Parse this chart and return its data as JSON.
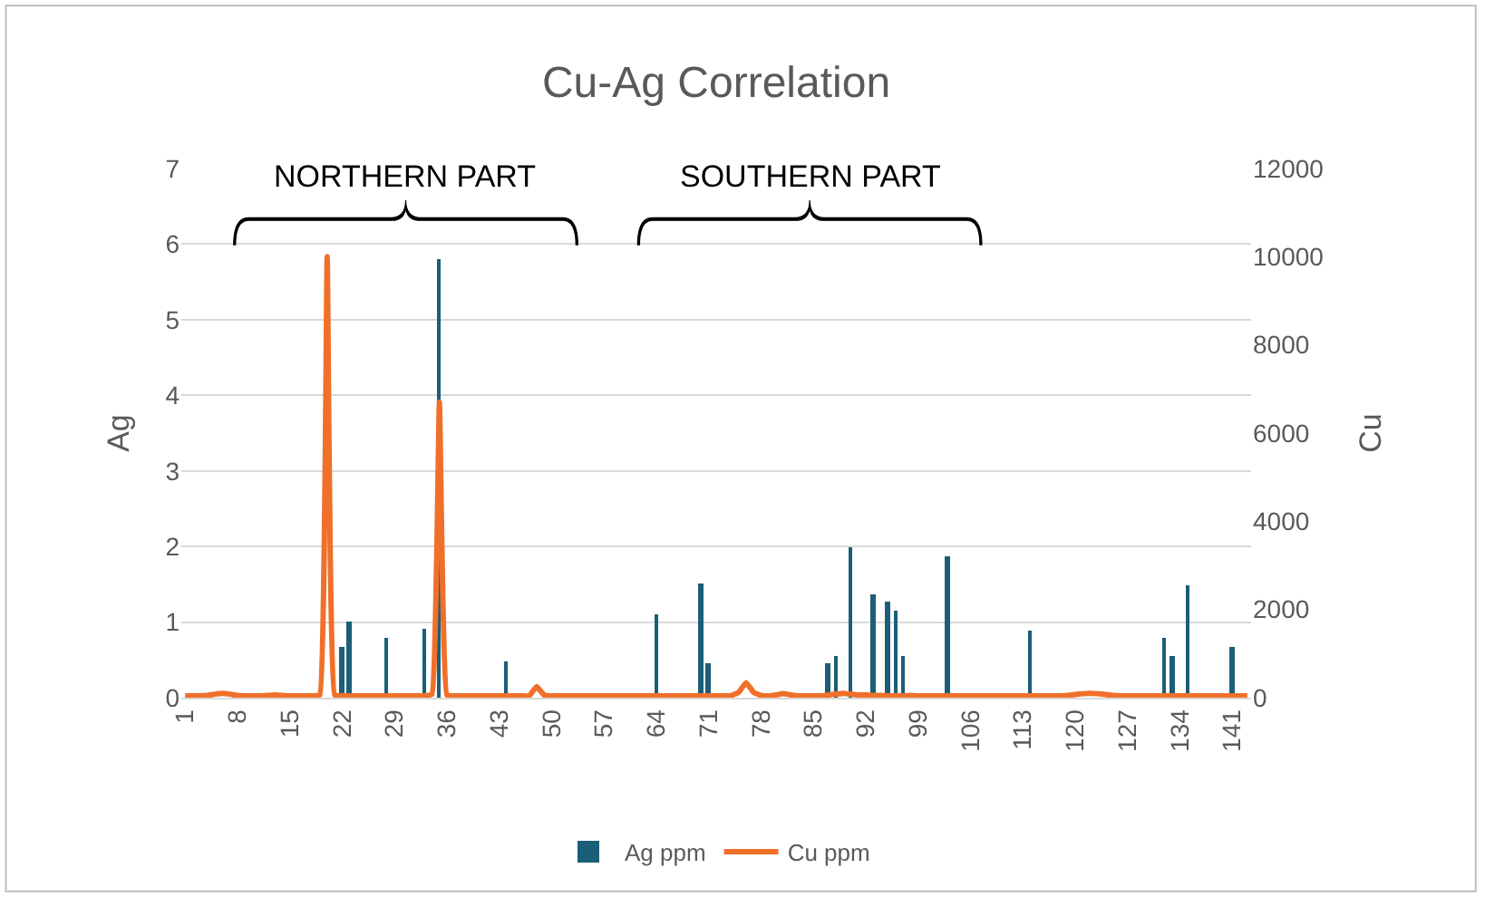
{
  "chart_data": {
    "type": "bar",
    "title": "Cu-Ag Correlation",
    "ylabel": "Ag",
    "y2label": "Cu",
    "categories": [
      "1",
      null,
      null,
      null,
      null,
      null,
      null,
      "8",
      null,
      null,
      null,
      null,
      null,
      null,
      "15",
      null,
      null,
      null,
      null,
      null,
      null,
      "22",
      null,
      null,
      null,
      null,
      null,
      null,
      "29",
      null,
      null,
      null,
      null,
      null,
      null,
      "36",
      null,
      null,
      null,
      null,
      null,
      null,
      "43",
      null,
      null,
      null,
      null,
      null,
      null,
      "50",
      null,
      null,
      null,
      null,
      null,
      null,
      "57",
      null,
      null,
      null,
      null,
      null,
      null,
      "64",
      null,
      null,
      null,
      null,
      null,
      null,
      "71",
      null,
      null,
      null,
      null,
      null,
      null,
      "78",
      null,
      null,
      null,
      null,
      null,
      null,
      "85",
      null,
      null,
      null,
      null,
      null,
      null,
      "92",
      null,
      null,
      null,
      null,
      null,
      null,
      "99",
      null,
      null,
      null,
      null,
      null,
      null,
      "106",
      null,
      null,
      null,
      null,
      null,
      null,
      "113",
      null,
      null,
      null,
      null,
      null,
      null,
      "120",
      null,
      null,
      null,
      null,
      null,
      null,
      "127",
      null,
      null,
      null,
      null,
      null,
      null,
      "134",
      null,
      null,
      null,
      null,
      null,
      null,
      "141",
      null,
      null
    ],
    "series": [
      {
        "name": "Ag ppm",
        "color": "#1b5e78",
        "values": [
          null,
          null,
          null,
          null,
          null,
          null,
          null,
          null,
          null,
          null,
          null,
          null,
          null,
          null,
          null,
          null,
          null,
          null,
          null,
          null,
          null,
          0.67,
          1.0,
          null,
          null,
          null,
          null,
          0.8,
          null,
          null,
          null,
          null,
          0.92,
          null,
          5.8,
          null,
          null,
          null,
          null,
          null,
          null,
          null,
          null,
          0.48,
          null,
          null,
          null,
          null,
          null,
          null,
          null,
          null,
          null,
          null,
          null,
          null,
          null,
          null,
          null,
          null,
          null,
          null,
          null,
          1.1,
          null,
          null,
          null,
          null,
          null,
          1.5,
          0.46,
          null,
          null,
          null,
          null,
          null,
          null,
          null,
          null,
          null,
          null,
          null,
          null,
          null,
          null,
          null,
          0.46,
          0.56,
          null,
          2.0,
          null,
          null,
          1.36,
          null,
          1.26,
          1.16,
          0.56,
          null,
          null,
          null,
          null,
          null,
          1.86,
          null,
          null,
          null,
          null,
          null,
          null,
          null,
          null,
          null,
          null,
          0.88,
          null,
          null,
          null,
          null,
          null,
          null,
          null,
          null,
          null,
          null,
          null,
          null,
          null,
          null,
          null,
          null,
          null,
          0.78,
          0.56,
          null,
          1.48,
          null,
          null,
          null,
          null,
          null,
          0.66,
          null,
          null
        ]
      },
      {
        "name": "Cu ppm",
        "type": "line",
        "axis": "y2",
        "color": "#f0702a",
        "values": [
          40,
          40,
          40,
          50,
          80,
          100,
          80,
          50,
          40,
          40,
          40,
          50,
          60,
          50,
          40,
          40,
          40,
          40,
          60,
          10000,
          60,
          40,
          40,
          40,
          40,
          40,
          40,
          40,
          40,
          40,
          40,
          40,
          40,
          80,
          6700,
          60,
          40,
          40,
          40,
          40,
          40,
          40,
          40,
          40,
          40,
          40,
          40,
          250,
          60,
          40,
          40,
          40,
          40,
          40,
          40,
          40,
          40,
          40,
          40,
          40,
          40,
          40,
          40,
          40,
          40,
          40,
          40,
          40,
          40,
          40,
          40,
          40,
          40,
          50,
          120,
          340,
          120,
          50,
          40,
          60,
          90,
          60,
          40,
          40,
          40,
          40,
          60,
          80,
          100,
          80,
          60,
          60,
          50,
          50,
          40,
          40,
          40,
          50,
          40,
          40,
          40,
          40,
          40,
          40,
          40,
          40,
          40,
          40,
          40,
          40,
          40,
          40,
          40,
          40,
          40,
          40,
          40,
          40,
          50,
          70,
          90,
          100,
          90,
          70,
          50,
          40,
          40,
          40,
          40,
          40,
          40,
          40,
          40,
          40,
          40,
          40,
          40,
          40,
          40,
          40,
          40,
          40,
          40
        ]
      }
    ],
    "ylim": [
      0,
      7
    ],
    "yticks": [
      0,
      1,
      2,
      3,
      4,
      5,
      6,
      7
    ],
    "y2lim": [
      0,
      12000
    ],
    "y2ticks": [
      0,
      2000,
      4000,
      6000,
      8000,
      10000,
      12000
    ],
    "grid": "y",
    "legend": "bottom",
    "annotations": [
      "NORTHERN PART",
      "SOUTHERN PART"
    ]
  }
}
